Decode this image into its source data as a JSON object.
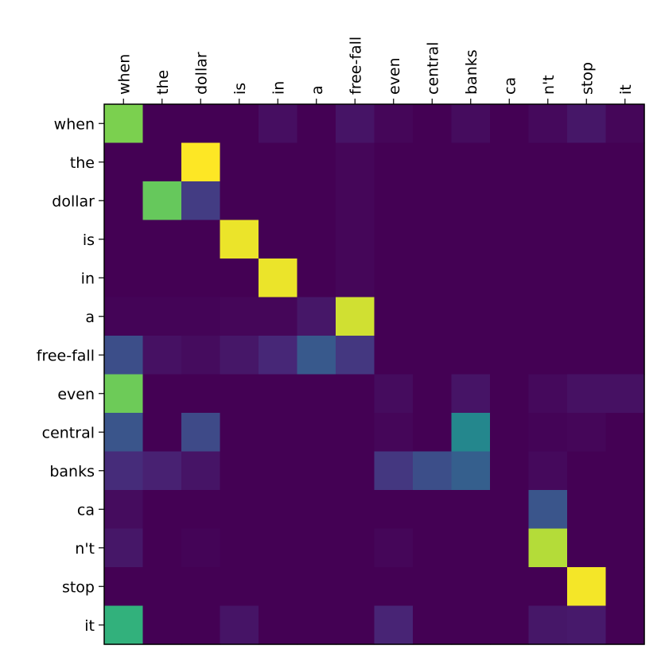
{
  "chart_data": {
    "type": "heatmap",
    "colormap": "viridis",
    "title": "",
    "xlabel": "",
    "ylabel": "",
    "x_labels": [
      "when",
      "the",
      "dollar",
      "is",
      "in",
      "a",
      "free-fall",
      "even",
      "central",
      "banks",
      "ca",
      "n't",
      "stop",
      "it"
    ],
    "y_labels": [
      "when",
      "the",
      "dollar",
      "is",
      "in",
      "a",
      "free-fall",
      "even",
      "central",
      "banks",
      "ca",
      "n't",
      "stop",
      "it"
    ],
    "x_axis_position": "top",
    "value_range": [
      0,
      1
    ],
    "values": [
      [
        0.85,
        0.0,
        0.0,
        0.0,
        0.05,
        0.0,
        0.07,
        0.02,
        0.0,
        0.04,
        0.0,
        0.03,
        0.08,
        0.02
      ],
      [
        0.0,
        0.0,
        1.0,
        0.0,
        0.0,
        0.0,
        0.02,
        0.0,
        0.0,
        0.0,
        0.0,
        0.0,
        0.0,
        0.0
      ],
      [
        0.0,
        0.82,
        0.22,
        0.0,
        0.0,
        0.0,
        0.02,
        0.0,
        0.0,
        0.0,
        0.0,
        0.0,
        0.0,
        0.0
      ],
      [
        0.0,
        0.0,
        0.0,
        0.98,
        0.0,
        0.0,
        0.02,
        0.0,
        0.0,
        0.0,
        0.0,
        0.0,
        0.0,
        0.0
      ],
      [
        0.0,
        0.0,
        0.0,
        0.0,
        0.98,
        0.0,
        0.02,
        0.0,
        0.0,
        0.0,
        0.0,
        0.0,
        0.0,
        0.0
      ],
      [
        0.01,
        0.01,
        0.01,
        0.02,
        0.02,
        0.08,
        0.95,
        0.0,
        0.0,
        0.0,
        0.0,
        0.0,
        0.0,
        0.0
      ],
      [
        0.3,
        0.06,
        0.04,
        0.08,
        0.14,
        0.35,
        0.2,
        0.0,
        0.0,
        0.0,
        0.0,
        0.0,
        0.0,
        0.0
      ],
      [
        0.83,
        0.0,
        0.0,
        0.0,
        0.0,
        0.0,
        0.0,
        0.04,
        0.0,
        0.07,
        0.0,
        0.03,
        0.06,
        0.06
      ],
      [
        0.33,
        0.0,
        0.28,
        0.0,
        0.0,
        0.0,
        0.0,
        0.02,
        0.0,
        0.58,
        0.0,
        0.01,
        0.02,
        0.0
      ],
      [
        0.16,
        0.12,
        0.07,
        0.0,
        0.0,
        0.0,
        0.0,
        0.2,
        0.3,
        0.38,
        0.0,
        0.03,
        0.0,
        0.0
      ],
      [
        0.04,
        0.0,
        0.0,
        0.0,
        0.0,
        0.0,
        0.0,
        0.0,
        0.0,
        0.0,
        0.0,
        0.33,
        0.0,
        0.0
      ],
      [
        0.08,
        0.0,
        0.01,
        0.0,
        0.0,
        0.0,
        0.0,
        0.02,
        0.0,
        0.0,
        0.0,
        0.92,
        0.0,
        0.0
      ],
      [
        0.0,
        0.0,
        0.0,
        0.0,
        0.0,
        0.0,
        0.0,
        0.0,
        0.0,
        0.0,
        0.0,
        0.0,
        0.99,
        0.0
      ],
      [
        0.73,
        0.0,
        0.0,
        0.07,
        0.0,
        0.0,
        0.0,
        0.13,
        0.0,
        0.0,
        0.0,
        0.08,
        0.09,
        0.0
      ]
    ]
  }
}
